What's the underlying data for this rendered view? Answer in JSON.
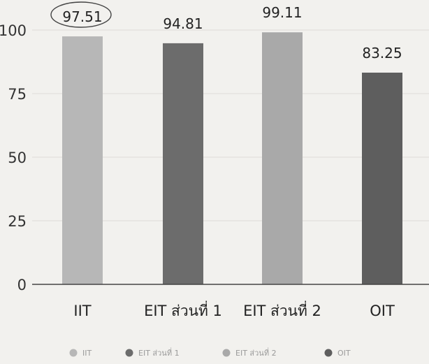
{
  "chart_data": {
    "type": "bar",
    "categories": [
      "IIT",
      "EIT ส่วนที่ 1",
      "EIT ส่วนที่ 2",
      "OIT"
    ],
    "values": [
      97.51,
      94.81,
      99.11,
      83.25
    ],
    "value_labels": [
      "97.51",
      "94.81",
      "99.11",
      "83.25"
    ],
    "ylim": [
      0,
      100
    ],
    "yticks": [
      0,
      25,
      50,
      75,
      100
    ],
    "grid": true,
    "legend": {
      "position": "bottom",
      "entries": [
        "IIT",
        "EIT ส่วนที่ 1",
        "EIT ส่วนที่ 2",
        "OIT"
      ]
    },
    "colors": [
      "#b7b7b7",
      "#6c6c6c",
      "#a9a9a9",
      "#5e5e5e"
    ],
    "title": "",
    "xlabel": "",
    "ylabel": ""
  }
}
